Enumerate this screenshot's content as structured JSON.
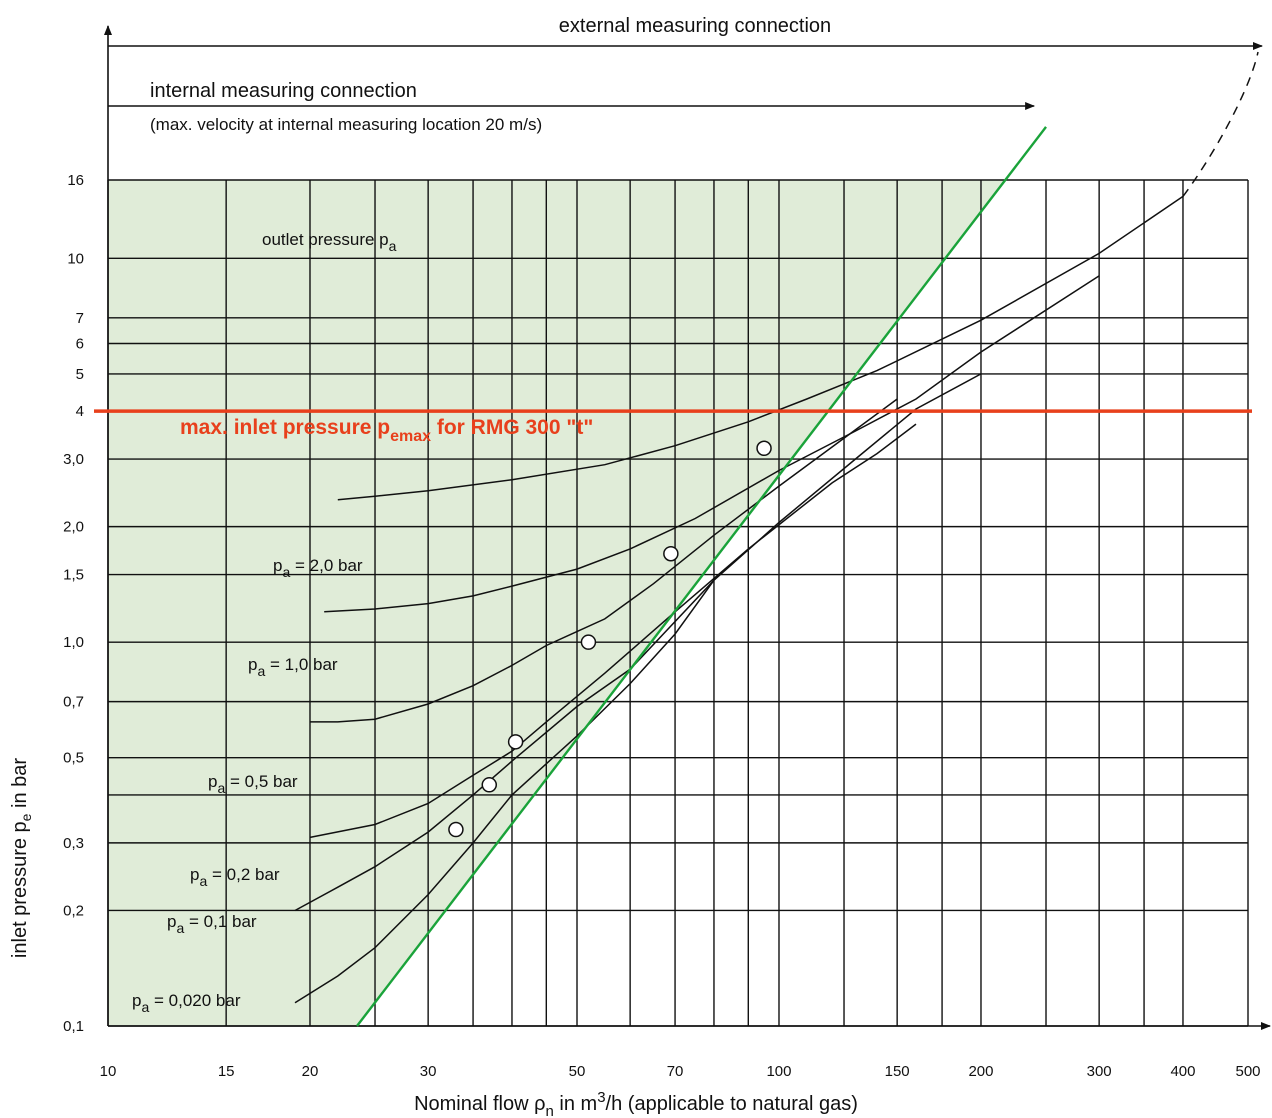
{
  "chart_data": {
    "type": "line",
    "x_scale": "log",
    "y_scale": "log",
    "xlabel": {
      "pre": "Nominal flow ",
      "symbol": "ρ",
      "sub": "n",
      "mid": " in m",
      "sup": "3",
      "post": "/h (applicable to natural gas)"
    },
    "ylabel": {
      "pre": "inlet pressure p",
      "sub": "e",
      "post": " in bar"
    },
    "xlim": [
      10,
      500
    ],
    "ylim": [
      0.1,
      16
    ],
    "x_ticks": [
      10,
      15,
      20,
      30,
      50,
      70,
      100,
      150,
      200,
      300,
      400,
      500
    ],
    "x_tick_labels": [
      "10",
      "15",
      "20",
      "30",
      "50",
      "70",
      "100",
      "150",
      "200",
      "300",
      "400",
      "500"
    ],
    "y_ticks": [
      0.1,
      0.2,
      0.3,
      0.5,
      0.7,
      1.0,
      1.5,
      2.0,
      3.0,
      4,
      5,
      6,
      7,
      10,
      16
    ],
    "y_tick_labels": [
      "0,1",
      "0,2",
      "0,3",
      "0,5",
      "0,7",
      "1,0",
      "1,5",
      "2,0",
      "3,0",
      "4",
      "5",
      "6",
      "7",
      "10",
      "16"
    ],
    "x_gridlines": [
      10,
      15,
      20,
      25,
      30,
      35,
      40,
      45,
      50,
      60,
      70,
      80,
      90,
      100,
      125,
      150,
      175,
      200,
      250,
      300,
      350,
      400,
      500
    ],
    "y_gridlines": [
      0.1,
      0.2,
      0.3,
      0.4,
      0.5,
      0.7,
      1.0,
      1.5,
      2.0,
      3.0,
      4,
      5,
      6,
      7,
      10,
      16
    ],
    "grid": true,
    "shaded_region": {
      "description": "outlet pressure pa",
      "color": "#e0ecd8"
    },
    "outlet_label": {
      "pre": "outlet pressure p",
      "sub": "a"
    },
    "limit_line": {
      "y": 4,
      "color": "#e8401c",
      "label": {
        "pre": "max. inlet pressure p",
        "sub": "emax",
        "post": " for RMG 300 \"t\""
      }
    },
    "internal_limit_line": {
      "color": "#1aa33a",
      "points": [
        {
          "x": 23.5,
          "y": 0.1
        },
        {
          "x": 250,
          "y": 22
        }
      ]
    },
    "series": [
      {
        "name": "pa = 2,0 bar",
        "label_sub": "a",
        "label_pre": "p",
        "label_post": " = 2,0 bar",
        "points": [
          [
            22,
            2.35
          ],
          [
            25,
            2.4
          ],
          [
            30,
            2.48
          ],
          [
            40,
            2.65
          ],
          [
            55,
            2.9
          ],
          [
            70,
            3.25
          ],
          [
            90,
            3.75
          ],
          [
            110,
            4.3
          ],
          [
            140,
            5.1
          ],
          [
            200,
            6.9
          ],
          [
            300,
            10.3
          ],
          [
            400,
            14.5
          ]
        ]
      },
      {
        "name": "pa = 1,0 bar",
        "label_sub": "a",
        "label_pre": "p",
        "label_post": " = 1,0 bar",
        "points": [
          [
            21,
            1.2
          ],
          [
            25,
            1.22
          ],
          [
            30,
            1.26
          ],
          [
            35,
            1.32
          ],
          [
            40,
            1.4
          ],
          [
            50,
            1.55
          ],
          [
            60,
            1.75
          ],
          [
            75,
            2.1
          ],
          [
            100,
            2.8
          ],
          [
            130,
            3.55
          ],
          [
            160,
            4.3
          ],
          [
            200,
            5.7
          ],
          [
            300,
            9.0
          ]
        ]
      },
      {
        "name": "pa = 0,5 bar",
        "label_sub": "a",
        "label_pre": "p",
        "label_post": " = 0,5 bar",
        "points": [
          [
            20,
            0.62
          ],
          [
            22,
            0.62
          ],
          [
            25,
            0.63
          ],
          [
            30,
            0.69
          ],
          [
            35,
            0.77
          ],
          [
            40,
            0.87
          ],
          [
            45,
            0.98
          ],
          [
            55,
            1.15
          ],
          [
            65,
            1.42
          ],
          [
            80,
            1.9
          ],
          [
            100,
            2.55
          ],
          [
            150,
            4.3
          ]
        ]
      },
      {
        "name": "pa = 0,2 bar",
        "label_sub": "a",
        "label_pre": "p",
        "label_post": " = 0,2 bar",
        "points": [
          [
            20,
            0.31
          ],
          [
            25,
            0.335
          ],
          [
            30,
            0.38
          ],
          [
            35,
            0.45
          ],
          [
            40,
            0.52
          ],
          [
            45,
            0.62
          ],
          [
            55,
            0.83
          ],
          [
            70,
            1.2
          ],
          [
            90,
            1.75
          ],
          [
            120,
            2.6
          ],
          [
            140,
            3.1
          ],
          [
            160,
            3.7
          ]
        ]
      },
      {
        "name": "pa = 0,1 bar",
        "label_sub": "a",
        "label_pre": "p",
        "label_post": " = 0,1 bar",
        "points": [
          [
            19,
            0.2
          ],
          [
            22,
            0.23
          ],
          [
            25,
            0.26
          ],
          [
            30,
            0.32
          ],
          [
            35,
            0.4
          ],
          [
            40,
            0.49
          ],
          [
            50,
            0.68
          ],
          [
            60,
            0.85
          ],
          [
            80,
            1.45
          ],
          [
            100,
            2.05
          ],
          [
            130,
            3.0
          ],
          [
            160,
            4.05
          ],
          [
            200,
            5.0
          ]
        ]
      },
      {
        "name": "pa = 0,020 bar",
        "label_sub": "a",
        "label_pre": "p",
        "label_post": " = 0,020 bar",
        "points": [
          [
            19,
            0.115
          ],
          [
            22,
            0.135
          ],
          [
            25,
            0.16
          ],
          [
            30,
            0.22
          ],
          [
            35,
            0.3
          ],
          [
            40,
            0.4
          ],
          [
            50,
            0.57
          ],
          [
            60,
            0.78
          ],
          [
            70,
            1.05
          ],
          [
            80,
            1.45
          ]
        ]
      }
    ],
    "intersection_markers": [
      {
        "x": 33,
        "y": 0.325
      },
      {
        "x": 37,
        "y": 0.425
      },
      {
        "x": 40.5,
        "y": 0.55
      },
      {
        "x": 52,
        "y": 1.0
      },
      {
        "x": 69,
        "y": 1.7
      },
      {
        "x": 95,
        "y": 3.2
      }
    ],
    "arrows": {
      "external": {
        "label": "external measuring connection",
        "to_x": 500
      },
      "internal": {
        "label": "internal measuring connection",
        "sublabel": "(max. velocity at internal measuring location 20 m/s)",
        "to_x": 240
      }
    }
  }
}
